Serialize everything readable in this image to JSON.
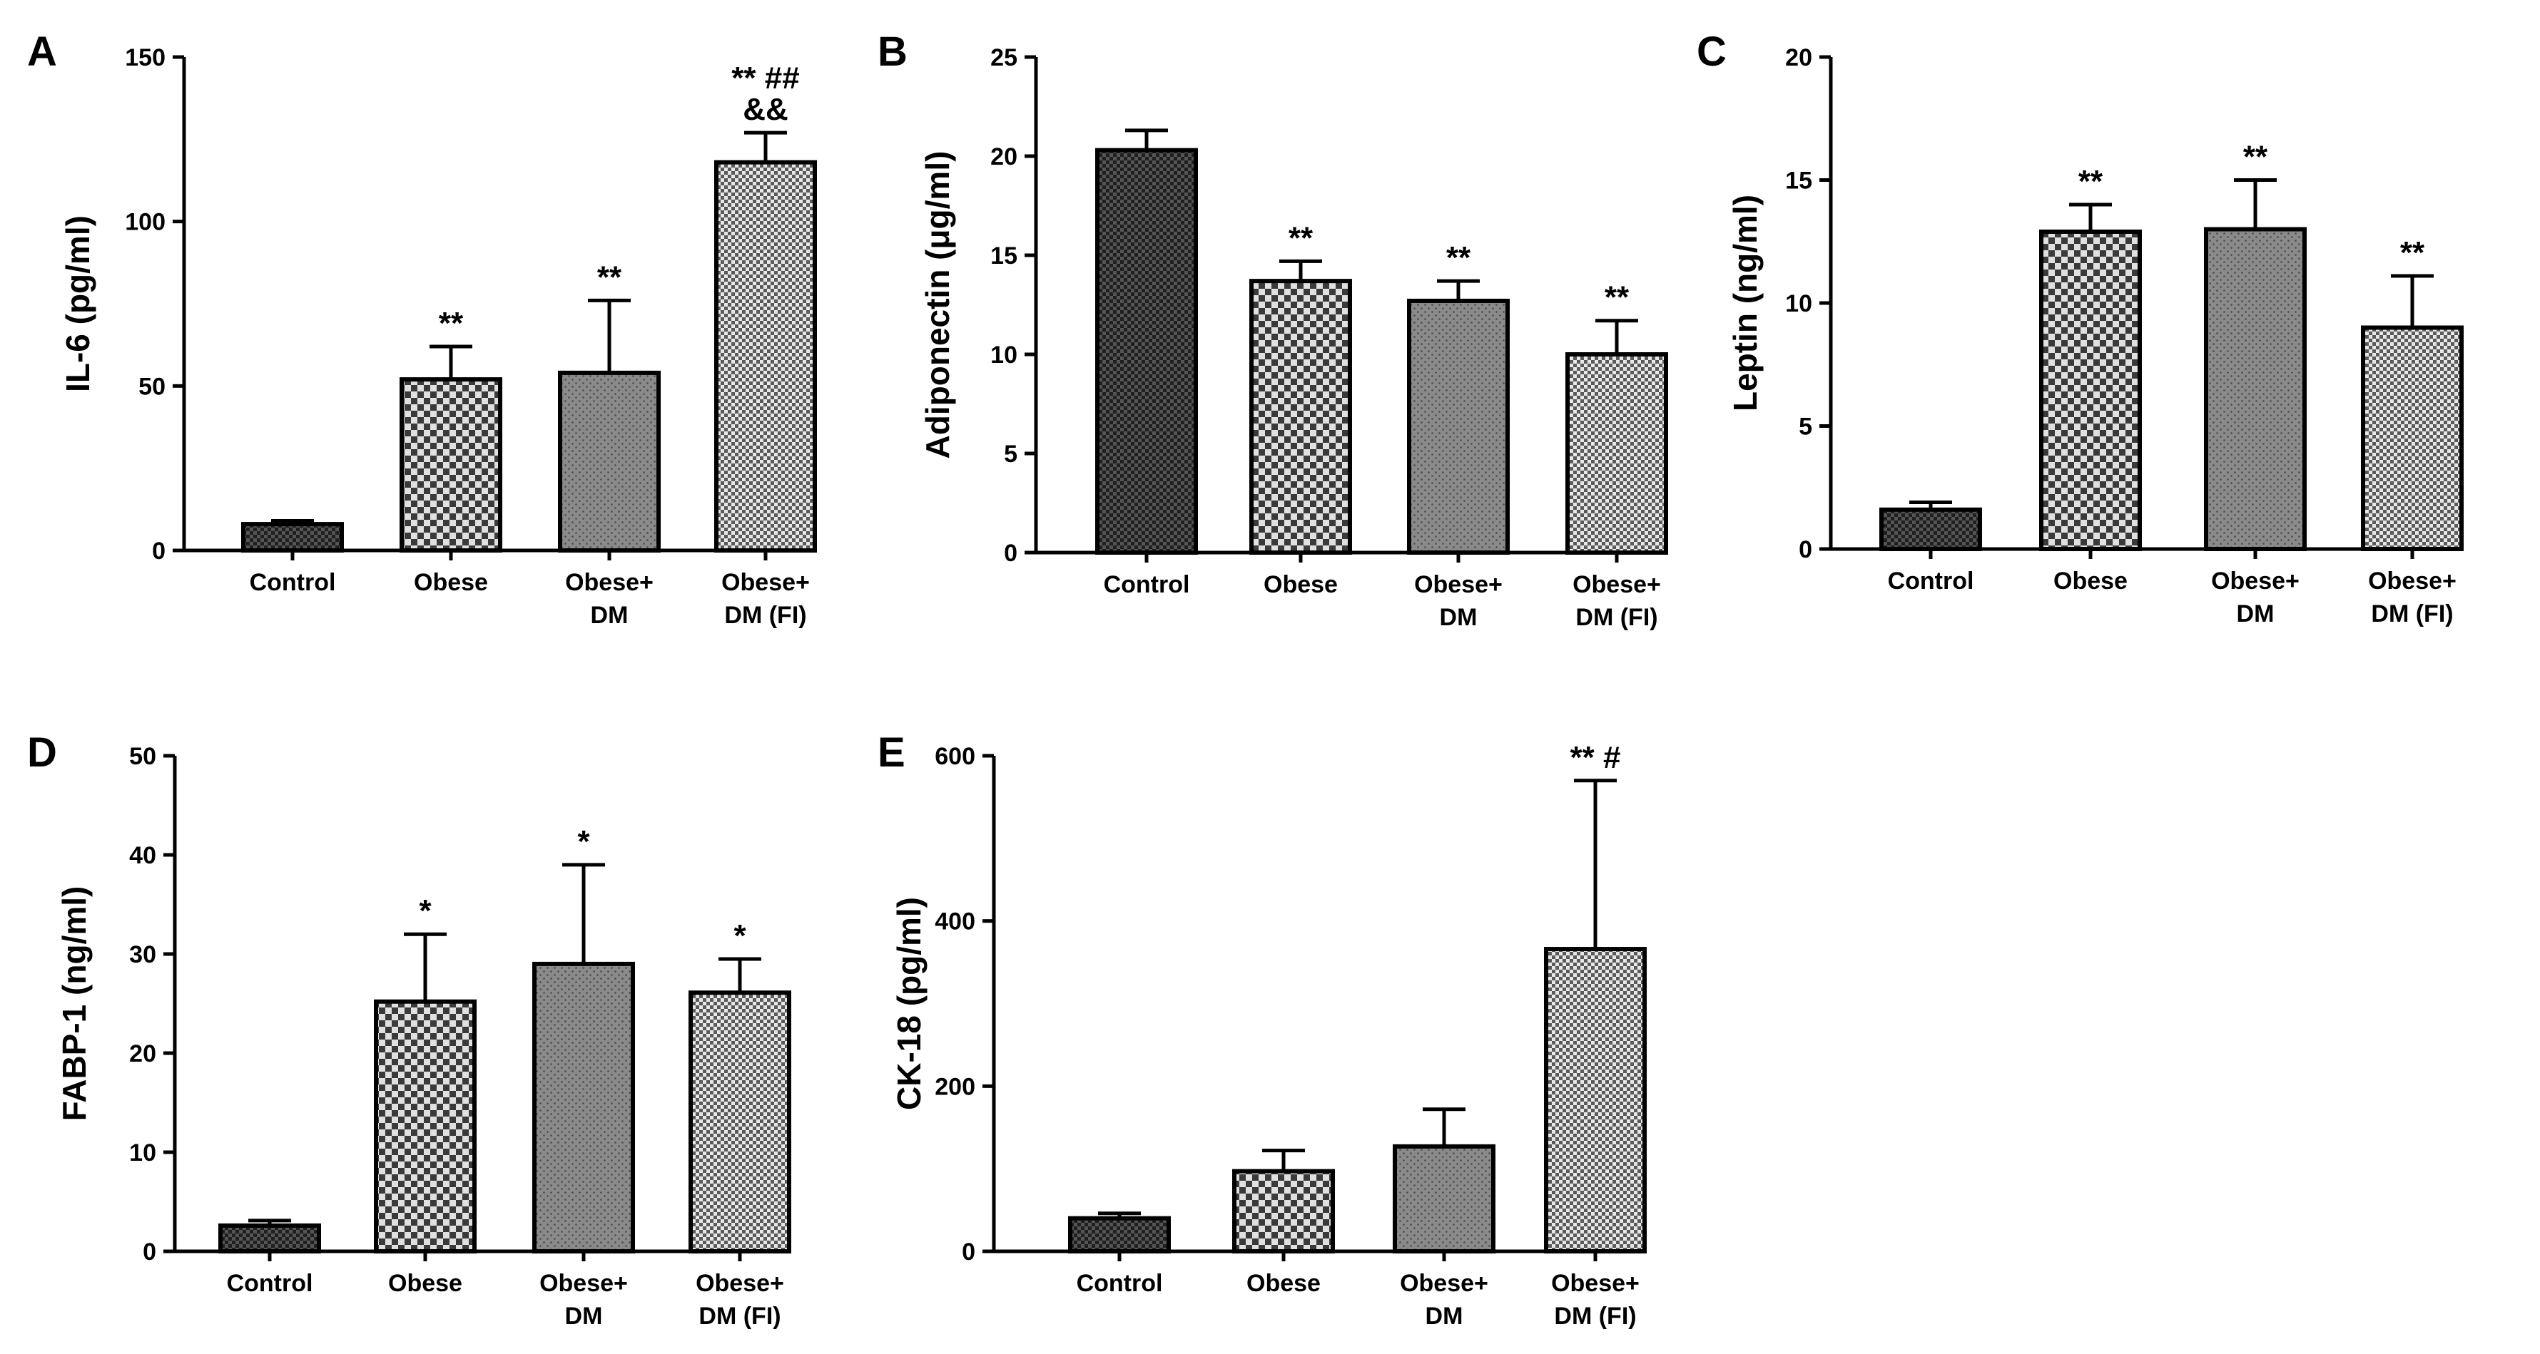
{
  "chart_data": [
    {
      "type": "bar",
      "panel": "A",
      "ylabel": "IL-6 (pg/ml)",
      "ylim": [
        0,
        150
      ],
      "yticks": [
        0,
        50,
        100,
        150
      ],
      "categories": [
        [
          "Control"
        ],
        [
          "Obese"
        ],
        [
          "Obese+",
          "DM"
        ],
        [
          "Obese+",
          "DM (FI)"
        ]
      ],
      "values": [
        8,
        52,
        54,
        118
      ],
      "errors": [
        1,
        10,
        22,
        9
      ],
      "annotations": [
        [
          ""
        ],
        [
          "**"
        ],
        [
          "**"
        ],
        [
          "** ##",
          "&&"
        ]
      ]
    },
    {
      "type": "bar",
      "panel": "B",
      "ylabel": "Adiponectin (μg/ml)",
      "ylim": [
        0,
        25
      ],
      "yticks": [
        0,
        5,
        10,
        15,
        20,
        25
      ],
      "categories": [
        [
          "Control"
        ],
        [
          "Obese"
        ],
        [
          "Obese+",
          "DM"
        ],
        [
          "Obese+",
          "DM (FI)"
        ]
      ],
      "values": [
        20.3,
        13.7,
        12.7,
        10.0
      ],
      "errors": [
        1.0,
        1.0,
        1.0,
        1.7
      ],
      "annotations": [
        [
          ""
        ],
        [
          "**"
        ],
        [
          "**"
        ],
        [
          "**"
        ]
      ]
    },
    {
      "type": "bar",
      "panel": "C",
      "ylabel": "Leptin (ng/ml)",
      "ylim": [
        0,
        20
      ],
      "yticks": [
        0,
        5,
        10,
        15,
        20
      ],
      "categories": [
        [
          "Control"
        ],
        [
          "Obese"
        ],
        [
          "Obese+",
          "DM"
        ],
        [
          "Obese+",
          "DM (FI)"
        ]
      ],
      "values": [
        1.6,
        12.9,
        13.0,
        9.0
      ],
      "errors": [
        0.3,
        1.1,
        2.0,
        2.1
      ],
      "annotations": [
        [
          ""
        ],
        [
          "**"
        ],
        [
          "**"
        ],
        [
          "**"
        ]
      ]
    },
    {
      "type": "bar",
      "panel": "D",
      "ylabel": "FABP-1 (ng/ml)",
      "ylim": [
        0,
        50
      ],
      "yticks": [
        0,
        10,
        20,
        30,
        40,
        50
      ],
      "categories": [
        [
          "Control"
        ],
        [
          "Obese"
        ],
        [
          "Obese+",
          "DM"
        ],
        [
          "Obese+",
          "DM (FI)"
        ]
      ],
      "values": [
        2.6,
        25.2,
        29.0,
        26.1
      ],
      "errors": [
        0.5,
        6.8,
        10.0,
        3.4
      ],
      "annotations": [
        [
          ""
        ],
        [
          "*"
        ],
        [
          "*"
        ],
        [
          "*"
        ]
      ]
    },
    {
      "type": "bar",
      "panel": "E",
      "ylabel": "CK-18 (pg/ml)",
      "ylim": [
        0,
        600
      ],
      "yticks": [
        0,
        200,
        400,
        600
      ],
      "categories": [
        [
          "Control"
        ],
        [
          "Obese"
        ],
        [
          "Obese+",
          "DM"
        ],
        [
          "Obese+",
          "DM (FI)"
        ]
      ],
      "values": [
        40,
        97,
        127,
        366
      ],
      "errors": [
        6,
        25,
        45,
        204
      ],
      "annotations": [
        [
          ""
        ],
        [
          ""
        ],
        [
          ""
        ],
        [
          "** #"
        ]
      ]
    }
  ]
}
